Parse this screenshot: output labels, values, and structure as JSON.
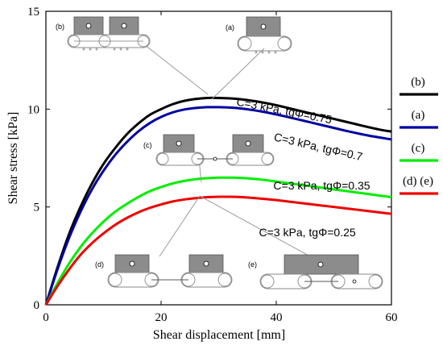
{
  "chart_data": {
    "type": "line",
    "xlabel": "Shear displacement [mm]",
    "ylabel": "Shear stress [kPa]",
    "xlim": [
      0,
      60
    ],
    "ylim": [
      0,
      15
    ],
    "xticks": [
      "0",
      "20",
      "40",
      "60"
    ],
    "yticks": [
      "0",
      "5",
      "10",
      "15"
    ],
    "grid": false,
    "legend_position": "right-outside",
    "series": [
      {
        "key": "b",
        "name": "(b)",
        "color": "#000000",
        "label": "C=3 kPa, tgΦ=0.75",
        "x": [
          0,
          2,
          4,
          6,
          8,
          10,
          12,
          14,
          16,
          18,
          20,
          22,
          24,
          26,
          28,
          30,
          32,
          34,
          36,
          38,
          40,
          42,
          44,
          46,
          48,
          50,
          52,
          54,
          56,
          58,
          60
        ],
        "y": [
          0,
          1.9,
          3.6,
          5.0,
          6.2,
          7.2,
          8.0,
          8.7,
          9.25,
          9.7,
          10.0,
          10.25,
          10.42,
          10.52,
          10.57,
          10.57,
          10.55,
          10.5,
          10.42,
          10.32,
          10.2,
          10.06,
          9.92,
          9.78,
          9.64,
          9.5,
          9.36,
          9.22,
          9.08,
          8.95,
          8.85
        ]
      },
      {
        "key": "a",
        "name": "(a)",
        "color": "#0000a0",
        "label": "C=3 kPa, tgΦ=0.7",
        "x": [
          0,
          2,
          4,
          6,
          8,
          10,
          12,
          14,
          16,
          18,
          20,
          22,
          24,
          26,
          28,
          30,
          32,
          34,
          36,
          38,
          40,
          42,
          44,
          46,
          48,
          50,
          52,
          54,
          56,
          58,
          60
        ],
        "y": [
          0,
          1.8,
          3.4,
          4.75,
          5.9,
          6.85,
          7.65,
          8.3,
          8.85,
          9.28,
          9.6,
          9.83,
          9.98,
          10.06,
          10.1,
          10.1,
          10.08,
          10.03,
          9.95,
          9.85,
          9.73,
          9.6,
          9.46,
          9.32,
          9.18,
          9.04,
          8.9,
          8.77,
          8.65,
          8.55,
          8.45
        ]
      },
      {
        "key": "c",
        "name": "(c)",
        "color": "#00ee00",
        "label": "C=3 kPa, tgΦ=0.35",
        "x": [
          0,
          2,
          4,
          6,
          8,
          10,
          12,
          14,
          16,
          18,
          20,
          22,
          24,
          26,
          28,
          30,
          32,
          34,
          36,
          38,
          40,
          42,
          44,
          46,
          48,
          50,
          52,
          54,
          56,
          58,
          60
        ],
        "y": [
          0,
          1.1,
          2.1,
          2.95,
          3.65,
          4.25,
          4.75,
          5.15,
          5.5,
          5.8,
          6.02,
          6.2,
          6.33,
          6.42,
          6.47,
          6.5,
          6.5,
          6.48,
          6.44,
          6.38,
          6.3,
          6.22,
          6.14,
          6.06,
          5.98,
          5.9,
          5.82,
          5.74,
          5.66,
          5.58,
          5.5
        ]
      },
      {
        "key": "de",
        "name": "(d) (e)",
        "color": "#ee0000",
        "label": "C=3 kPa, tgΦ=0.25",
        "x": [
          0,
          2,
          4,
          6,
          8,
          10,
          12,
          14,
          16,
          18,
          20,
          22,
          24,
          26,
          28,
          30,
          32,
          34,
          36,
          38,
          40,
          42,
          44,
          46,
          48,
          50,
          52,
          54,
          56,
          58,
          60
        ],
        "y": [
          0,
          0.95,
          1.8,
          2.55,
          3.15,
          3.65,
          4.08,
          4.43,
          4.72,
          4.95,
          5.13,
          5.28,
          5.38,
          5.45,
          5.5,
          5.52,
          5.52,
          5.5,
          5.46,
          5.41,
          5.35,
          5.28,
          5.21,
          5.14,
          5.07,
          5.0,
          4.93,
          4.86,
          4.79,
          4.72,
          4.65
        ]
      }
    ],
    "curve_label_positions_data": [
      {
        "key": "b",
        "x": 33,
        "y": 10.2,
        "rotate": 11
      },
      {
        "key": "a",
        "x": 39.5,
        "y": 8.4,
        "rotate": 13
      },
      {
        "key": "c",
        "x": 39.5,
        "y": 5.9,
        "rotate": 0
      },
      {
        "key": "de",
        "x": 37,
        "y": 3.5,
        "rotate": 0
      }
    ]
  },
  "insets": {
    "a": "(a)",
    "b": "(b)",
    "c": "(c)",
    "d": "(d)",
    "e": "(e)"
  }
}
